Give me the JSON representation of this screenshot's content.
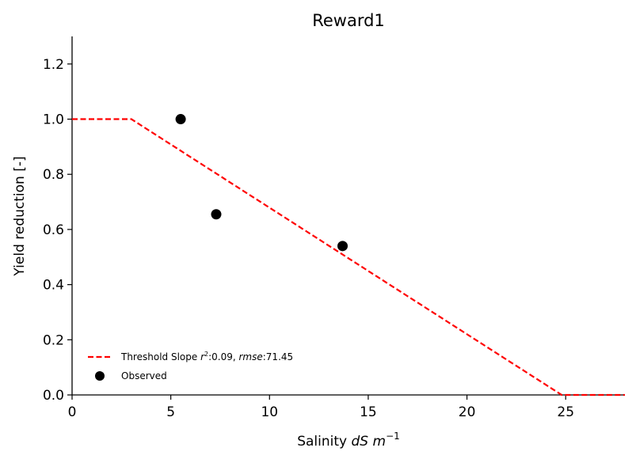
{
  "chart_data": {
    "type": "scatter",
    "title": "Reward1",
    "xlabel": {
      "prefix": "Salinity ",
      "math": "dS m",
      "superscript": "−1"
    },
    "ylabel": "Yield reduction [-]",
    "xlim": [
      0,
      28
    ],
    "ylim": [
      0,
      1.3
    ],
    "xticks": [
      0,
      5,
      10,
      15,
      20,
      25
    ],
    "xtick_labels": [
      "0",
      "5",
      "10",
      "15",
      "20",
      "25"
    ],
    "yticks": [
      0.0,
      0.2,
      0.4,
      0.6,
      0.8,
      1.0,
      1.2
    ],
    "ytick_labels": [
      "0.0",
      "0.2",
      "0.4",
      "0.6",
      "0.8",
      "1.0",
      "1.2"
    ],
    "grid": false,
    "legend_position": "lower-left",
    "series": [
      {
        "name": "Threshold Slope",
        "kind": "line",
        "style": "dashed",
        "color": "#ff0000",
        "x": [
          0,
          3.0,
          24.8,
          28
        ],
        "y": [
          1.0,
          1.0,
          0.0,
          0.0
        ],
        "legend_label": {
          "text1": "Threshold Slope ",
          "math1": "r",
          "sup1": "2",
          "text2": ":0.09, ",
          "math2": "rmse",
          "text3": ":71.45"
        }
      },
      {
        "name": "Observed",
        "kind": "points",
        "color": "#000000",
        "x": [
          5.5,
          7.3,
          13.7
        ],
        "y": [
          1.0,
          0.655,
          0.54
        ],
        "legend_label": {
          "text1": "Observed"
        }
      }
    ]
  }
}
